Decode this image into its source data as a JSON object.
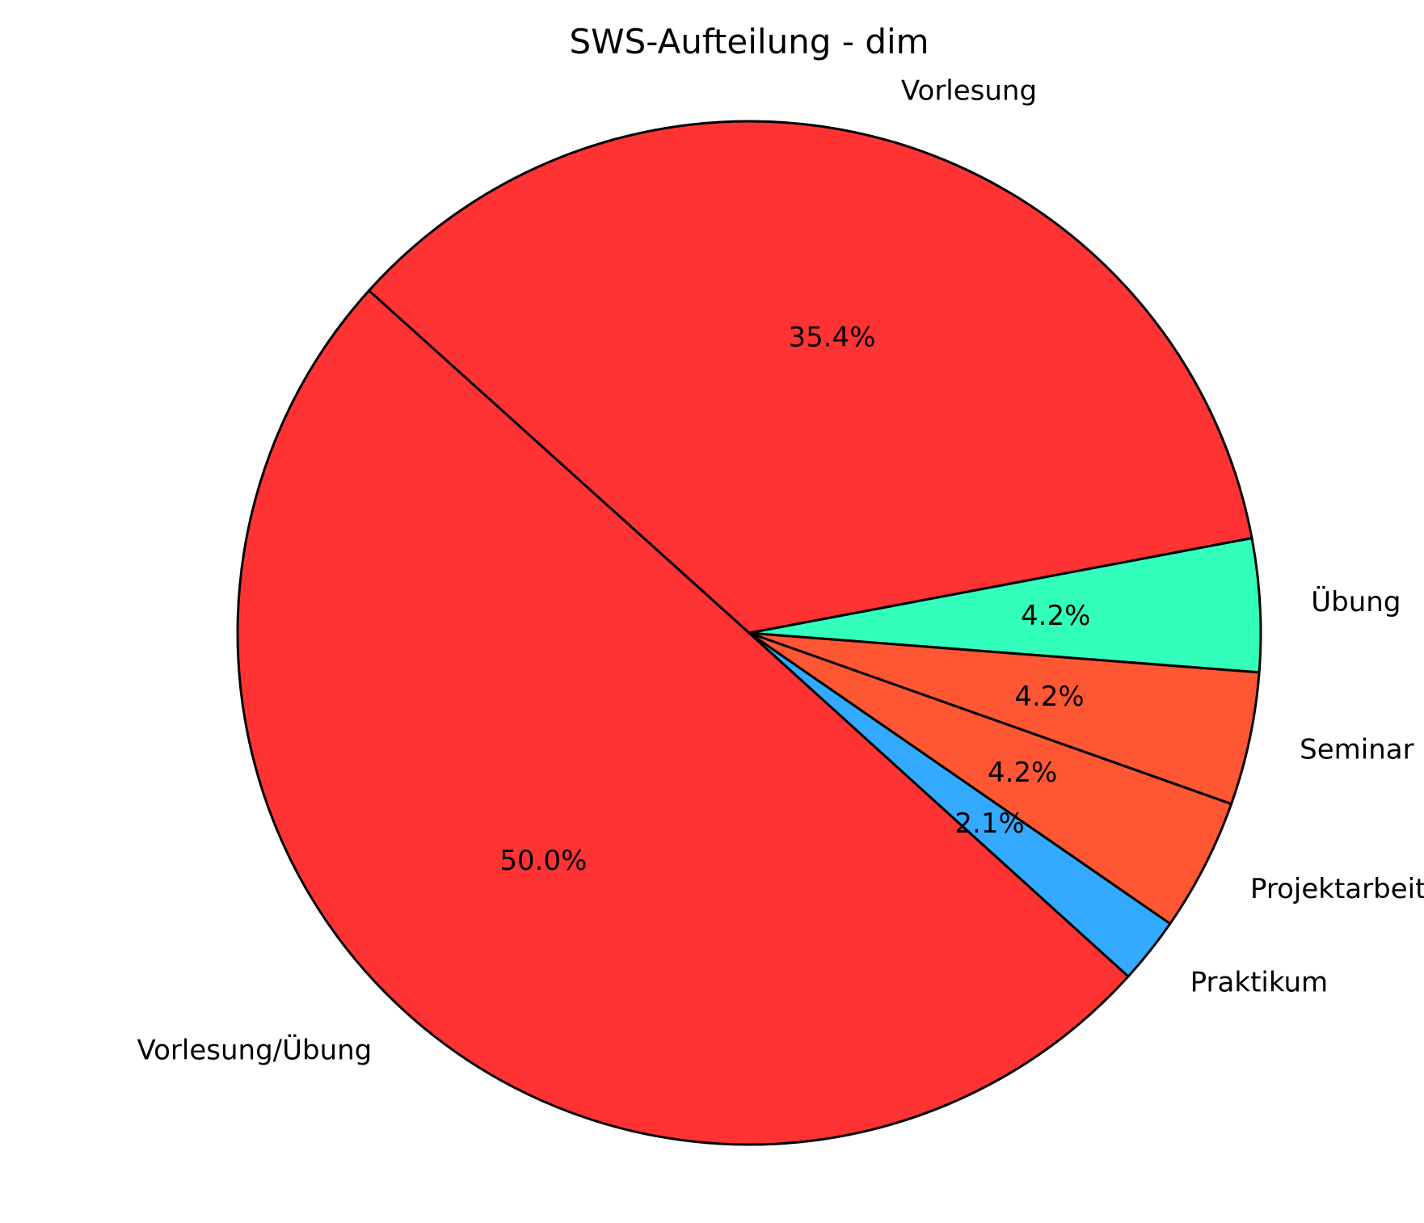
{
  "chart_data": {
    "type": "pie",
    "title": "SWS-Aufteilung - dim",
    "start_angle_deg": 138,
    "direction": "counterclockwise",
    "slices": [
      {
        "label": "Vorlesung/Übung",
        "value": 50.0,
        "pct_label": "50.0%",
        "color": "#ff3333"
      },
      {
        "label": "Praktikum",
        "value": 2.1,
        "pct_label": "2.1%",
        "color": "#33aaff"
      },
      {
        "label": "Projektarbeit",
        "value": 4.2,
        "pct_label": "4.2%",
        "color": "#ff5733"
      },
      {
        "label": "Seminar",
        "value": 4.2,
        "pct_label": "4.2%",
        "color": "#ff5733"
      },
      {
        "label": "Übung",
        "value": 4.2,
        "pct_label": "4.2%",
        "color": "#33ffbd"
      },
      {
        "label": "Vorlesung",
        "value": 35.4,
        "pct_label": "35.4%",
        "color": "#ff3333"
      }
    ],
    "legend": "none"
  }
}
